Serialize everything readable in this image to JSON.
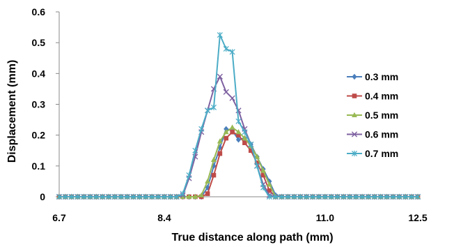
{
  "chart_data": {
    "type": "line",
    "xlabel": "True distance along path (mm)",
    "ylabel": "Displacement (mm)",
    "xlim": [
      6.7,
      12.5
    ],
    "ylim": [
      0,
      0.6
    ],
    "x_ticks": [
      "6.7",
      "8.4",
      "11.0",
      "12.5"
    ],
    "y_ticks": [
      "0",
      "0.1",
      "0.2",
      "0.3",
      "0.4",
      "0.5",
      "0.6"
    ],
    "grid": false,
    "legend_position": "right",
    "x": [
      6.7,
      6.8,
      6.9,
      7.0,
      7.1,
      7.2,
      7.3,
      7.4,
      7.5,
      7.6,
      7.7,
      7.8,
      7.9,
      8.0,
      8.1,
      8.2,
      8.3,
      8.4,
      8.5,
      8.6,
      8.7,
      8.8,
      8.9,
      9.0,
      9.1,
      9.2,
      9.3,
      9.4,
      9.5,
      9.6,
      9.7,
      9.8,
      9.9,
      10.0,
      10.1,
      10.2,
      10.3,
      10.4,
      10.5,
      10.6,
      10.7,
      10.8,
      10.9,
      11.0,
      11.1,
      11.2,
      11.3,
      11.4,
      11.5,
      11.6,
      11.7,
      11.8,
      11.9,
      12.0,
      12.1,
      12.2,
      12.3,
      12.4,
      12.5
    ],
    "series": [
      {
        "name": "0.3 mm",
        "color": "#4a7ebb",
        "marker": "diamond",
        "values": [
          0,
          0,
          0,
          0,
          0,
          0,
          0,
          0,
          0,
          0,
          0,
          0,
          0,
          0,
          0,
          0,
          0,
          0,
          0,
          0,
          0,
          0,
          0,
          0,
          0.03,
          0.1,
          0.16,
          0.22,
          0.215,
          0.185,
          0.19,
          0.17,
          0.13,
          0.09,
          0.05,
          0.005,
          0,
          0,
          0,
          0,
          0,
          0,
          0,
          0,
          0,
          0,
          0,
          0,
          0,
          0,
          0,
          0,
          0,
          0,
          0,
          0,
          0,
          0,
          0
        ]
      },
      {
        "name": "0.4 mm",
        "color": "#be4b48",
        "marker": "square",
        "values": [
          0,
          0,
          0,
          0,
          0,
          0,
          0,
          0,
          0,
          0,
          0,
          0,
          0,
          0,
          0,
          0,
          0,
          0,
          0,
          0,
          0,
          0,
          0,
          0,
          0.01,
          0.07,
          0.14,
          0.19,
          0.21,
          0.2,
          0.175,
          0.15,
          0.11,
          0.07,
          0.02,
          0,
          0,
          0,
          0,
          0,
          0,
          0,
          0,
          0,
          0,
          0,
          0,
          0,
          0,
          0,
          0,
          0,
          0,
          0,
          0,
          0,
          0,
          0,
          0
        ]
      },
      {
        "name": "0.5 mm",
        "color": "#98b954",
        "marker": "triangle",
        "values": [
          0,
          0,
          0,
          0,
          0,
          0,
          0,
          0,
          0,
          0,
          0,
          0,
          0,
          0,
          0,
          0,
          0,
          0,
          0,
          0,
          0,
          0,
          0,
          0.005,
          0.05,
          0.12,
          0.18,
          0.21,
          0.225,
          0.21,
          0.19,
          0.165,
          0.13,
          0.085,
          0.04,
          0,
          0,
          0,
          0,
          0,
          0,
          0,
          0,
          0,
          0,
          0,
          0,
          0,
          0,
          0,
          0,
          0,
          0,
          0,
          0,
          0,
          0,
          0,
          0
        ]
      },
      {
        "name": "0.6 mm",
        "color": "#7d60a0",
        "marker": "x",
        "values": [
          0,
          0,
          0,
          0,
          0,
          0,
          0,
          0,
          0,
          0,
          0,
          0,
          0,
          0,
          0,
          0,
          0,
          0,
          0,
          0,
          0.005,
          0.06,
          0.13,
          0.21,
          0.28,
          0.35,
          0.39,
          0.34,
          0.32,
          0.28,
          0.22,
          0.17,
          0.1,
          0.04,
          0.005,
          0,
          0,
          0,
          0,
          0,
          0,
          0,
          0,
          0,
          0,
          0,
          0,
          0,
          0,
          0,
          0,
          0,
          0,
          0,
          0,
          0,
          0,
          0,
          0
        ]
      },
      {
        "name": "0.7 mm",
        "color": "#4bacc6",
        "marker": "star",
        "values": [
          0,
          0,
          0,
          0,
          0,
          0,
          0,
          0,
          0,
          0,
          0,
          0,
          0,
          0,
          0,
          0,
          0,
          0,
          0,
          0,
          0.01,
          0.07,
          0.15,
          0.22,
          0.28,
          0.29,
          0.525,
          0.48,
          0.47,
          0.245,
          0.21,
          0.17,
          0.1,
          0.03,
          0,
          0,
          0,
          0,
          0,
          0,
          0,
          0,
          0,
          0,
          0,
          0,
          0,
          0,
          0,
          0,
          0,
          0,
          0,
          0,
          0,
          0,
          0,
          0,
          0
        ]
      }
    ]
  }
}
